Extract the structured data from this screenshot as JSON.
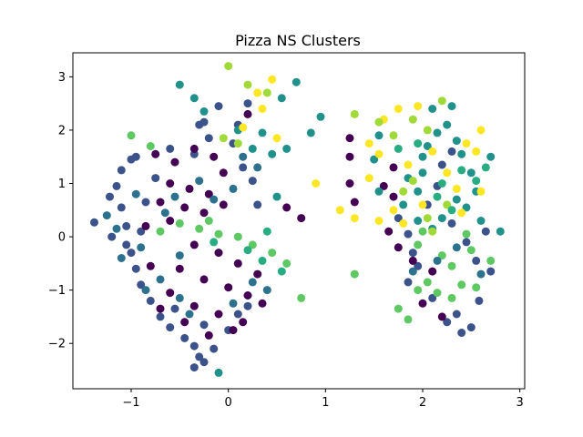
{
  "chart_data": {
    "type": "scatter",
    "title": "Pizza NS Clusters",
    "xlabel": "",
    "ylabel": "",
    "xlim": [
      -1.6,
      3.05
    ],
    "ylim": [
      -2.85,
      3.45
    ],
    "xticks": [
      -1,
      0,
      1,
      2,
      3
    ],
    "xtick_labels": [
      "−1",
      "0",
      "1",
      "2",
      "3"
    ],
    "yticks": [
      -2,
      -1,
      0,
      1,
      2,
      3
    ],
    "ytick_labels": [
      "−2",
      "−1",
      "0",
      "1",
      "2",
      "3"
    ],
    "grid": false,
    "legend": "none",
    "colormap": "viridis",
    "cluster_colors": [
      "#440154",
      "#3b528b",
      "#21918c",
      "#5ec962",
      "#fde725",
      "#a0da39",
      "#2c728e",
      "#27ad81"
    ],
    "series": [
      {
        "color": "#3b528b",
        "values": [
          [
            -1.38,
            0.27
          ],
          [
            -1.22,
            0.75
          ],
          [
            -1.15,
            0.95
          ],
          [
            -1.1,
            1.25
          ],
          [
            -1.0,
            1.45
          ],
          [
            -0.95,
            1.5
          ],
          [
            -1.05,
            0.2
          ],
          [
            -1.2,
            0.0
          ],
          [
            -1.0,
            -0.3
          ],
          [
            -0.95,
            -0.6
          ],
          [
            -0.9,
            -0.9
          ],
          [
            -0.8,
            -1.2
          ],
          [
            -0.7,
            -1.5
          ],
          [
            -0.6,
            -1.7
          ],
          [
            -0.45,
            -1.9
          ],
          [
            -0.35,
            -2.05
          ],
          [
            -0.3,
            -2.25
          ],
          [
            -0.35,
            -2.45
          ],
          [
            -0.25,
            -2.35
          ],
          [
            -0.15,
            -2.1
          ],
          [
            0.0,
            -1.75
          ],
          [
            0.1,
            -1.45
          ],
          [
            0.2,
            -1.3
          ],
          [
            -0.2,
            1.85
          ],
          [
            0.05,
            1.75
          ],
          [
            0.15,
            1.3
          ],
          [
            0.25,
            1.05
          ],
          [
            0.3,
            0.6
          ],
          [
            -0.35,
            1.55
          ],
          [
            -0.6,
            1.65
          ],
          [
            -0.3,
            2.1
          ],
          [
            0.1,
            2.1
          ],
          [
            -0.1,
            2.45
          ],
          [
            0.2,
            2.5
          ],
          [
            -0.25,
            2.15
          ],
          [
            -1.1,
            0.55
          ],
          [
            -0.9,
            0.1
          ],
          [
            -1.05,
            -0.15
          ],
          [
            -0.85,
            0.65
          ],
          [
            -0.75,
            1.1
          ],
          [
            -0.55,
            -1.35
          ],
          [
            -0.25,
            -1.65
          ],
          [
            1.75,
            0.35
          ],
          [
            1.85,
            0.05
          ],
          [
            1.9,
            -0.3
          ],
          [
            1.95,
            -0.55
          ],
          [
            2.05,
            0.6
          ],
          [
            2.15,
            0.95
          ],
          [
            2.3,
            0.25
          ],
          [
            2.45,
            -0.1
          ],
          [
            2.55,
            -0.45
          ],
          [
            2.65,
            0.1
          ],
          [
            2.7,
            -0.65
          ],
          [
            2.35,
            -1.45
          ],
          [
            2.25,
            -1.6
          ],
          [
            2.4,
            -1.8
          ],
          [
            2.5,
            -1.7
          ],
          [
            2.58,
            -1.2
          ],
          [
            2.1,
            -1.15
          ],
          [
            1.85,
            -0.85
          ],
          [
            2.2,
            1.35
          ],
          [
            2.3,
            1.6
          ]
        ]
      },
      {
        "color": "#440154",
        "values": [
          [
            -0.75,
            1.55
          ],
          [
            -0.55,
            1.4
          ],
          [
            -0.35,
            1.65
          ],
          [
            -0.15,
            1.5
          ],
          [
            -0.05,
            1.2
          ],
          [
            -0.6,
            1.0
          ],
          [
            -0.4,
            0.9
          ],
          [
            -0.2,
            0.8
          ],
          [
            -0.7,
            0.65
          ],
          [
            -0.45,
            0.55
          ],
          [
            -0.25,
            0.45
          ],
          [
            -0.05,
            0.6
          ],
          [
            -0.6,
            0.3
          ],
          [
            -0.35,
            -0.15
          ],
          [
            -0.1,
            -0.3
          ],
          [
            0.1,
            -0.5
          ],
          [
            0.3,
            -0.7
          ],
          [
            -0.5,
            -0.6
          ],
          [
            -0.25,
            -0.8
          ],
          [
            0.0,
            -0.95
          ],
          [
            0.2,
            -1.1
          ],
          [
            0.35,
            -1.25
          ],
          [
            -0.6,
            -1.05
          ],
          [
            -0.35,
            -1.3
          ],
          [
            -0.1,
            -1.45
          ],
          [
            0.15,
            -1.6
          ],
          [
            -0.45,
            -1.6
          ],
          [
            -0.2,
            -1.85
          ],
          [
            0.05,
            -1.75
          ],
          [
            -0.7,
            -1.35
          ],
          [
            -0.8,
            -0.55
          ],
          [
            -0.85,
            0.2
          ],
          [
            0.2,
            2.3
          ],
          [
            0.6,
            0.55
          ],
          [
            0.75,
            0.35
          ],
          [
            1.25,
            1.0
          ],
          [
            1.3,
            0.65
          ],
          [
            1.25,
            1.85
          ],
          [
            1.25,
            1.5
          ],
          [
            1.7,
            1.3
          ],
          [
            1.7,
            0.75
          ],
          [
            1.6,
            0.95
          ],
          [
            1.65,
            0.1
          ],
          [
            1.75,
            -0.2
          ],
          [
            1.9,
            -0.45
          ],
          [
            2.1,
            -0.65
          ],
          [
            2.0,
            -1.25
          ],
          [
            2.2,
            -1.5
          ]
        ]
      },
      {
        "color": "#21918c",
        "values": [
          [
            -0.5,
            2.85
          ],
          [
            -0.35,
            2.6
          ],
          [
            0.1,
            2.0
          ],
          [
            0.35,
            1.95
          ],
          [
            0.55,
            2.6
          ],
          [
            0.7,
            2.9
          ],
          [
            0.85,
            1.95
          ],
          [
            0.95,
            2.25
          ],
          [
            0.45,
            1.55
          ],
          [
            0.6,
            1.65
          ],
          [
            0.5,
            0.75
          ],
          [
            1.55,
            1.9
          ],
          [
            1.5,
            1.45
          ],
          [
            1.55,
            0.85
          ],
          [
            1.85,
            1.1
          ],
          [
            1.95,
            0.85
          ],
          [
            2.0,
            1.5
          ],
          [
            2.05,
            1.7
          ],
          [
            2.15,
            1.95
          ],
          [
            2.25,
            2.1
          ],
          [
            2.1,
            2.4
          ],
          [
            2.3,
            2.45
          ],
          [
            2.35,
            1.8
          ],
          [
            2.4,
            1.55
          ],
          [
            2.5,
            1.2
          ],
          [
            2.55,
            0.85
          ],
          [
            2.45,
            0.55
          ],
          [
            2.2,
            0.35
          ],
          [
            2.1,
            0.15
          ],
          [
            2.35,
            0.7
          ],
          [
            2.6,
            0.3
          ],
          [
            2.7,
            1.5
          ],
          [
            2.8,
            0.1
          ],
          [
            1.8,
            0.6
          ],
          [
            1.95,
            0.3
          ],
          [
            2.0,
            1.2
          ],
          [
            -0.1,
            -2.55
          ],
          [
            -0.25,
            2.35
          ],
          [
            0.25,
            1.65
          ]
        ]
      },
      {
        "color": "#5ec962",
        "values": [
          [
            -0.7,
            0.1
          ],
          [
            -0.5,
            0.25
          ],
          [
            -0.3,
            0.15
          ],
          [
            -0.1,
            0.05
          ],
          [
            0.1,
            0.0
          ],
          [
            0.25,
            -0.15
          ],
          [
            0.45,
            -0.3
          ],
          [
            0.6,
            -0.5
          ],
          [
            0.75,
            -1.15
          ],
          [
            -0.2,
            0.3
          ],
          [
            -1.0,
            1.9
          ],
          [
            -0.8,
            1.7
          ],
          [
            1.3,
            -0.7
          ],
          [
            1.75,
            -1.35
          ],
          [
            1.85,
            -1.55
          ],
          [
            1.95,
            -1.0
          ],
          [
            2.05,
            -0.85
          ],
          [
            2.2,
            -0.35
          ],
          [
            2.3,
            -0.55
          ],
          [
            2.4,
            -0.9
          ],
          [
            2.5,
            -0.25
          ],
          [
            2.15,
            -1.05
          ],
          [
            2.3,
            -1.15
          ],
          [
            1.95,
            -0.15
          ],
          [
            2.0,
            0.1
          ],
          [
            2.55,
            -0.95
          ],
          [
            2.7,
            -0.45
          ],
          [
            2.45,
            0.05
          ]
        ]
      },
      {
        "color": "#fde725",
        "values": [
          [
            0.3,
            2.7
          ],
          [
            0.45,
            2.95
          ],
          [
            0.35,
            2.4
          ],
          [
            0.15,
            2.05
          ],
          [
            0.5,
            1.85
          ],
          [
            0.9,
            1.0
          ],
          [
            1.15,
            0.5
          ],
          [
            1.3,
            0.35
          ],
          [
            1.45,
            1.1
          ],
          [
            1.55,
            1.55
          ],
          [
            1.6,
            2.2
          ],
          [
            1.75,
            2.4
          ],
          [
            1.85,
            1.35
          ],
          [
            1.95,
            2.45
          ],
          [
            2.1,
            1.6
          ],
          [
            2.25,
            1.2
          ],
          [
            2.35,
            0.9
          ],
          [
            2.4,
            0.45
          ],
          [
            2.45,
            1.75
          ],
          [
            2.55,
            1.6
          ],
          [
            2.6,
            2.0
          ],
          [
            1.7,
            0.5
          ],
          [
            1.8,
            0.25
          ],
          [
            2.0,
            0.6
          ],
          [
            1.55,
            0.3
          ],
          [
            1.45,
            1.75
          ],
          [
            2.6,
            0.85
          ]
        ]
      },
      {
        "color": "#a0da39",
        "values": [
          [
            0.0,
            3.2
          ],
          [
            0.2,
            2.85
          ],
          [
            0.4,
            2.7
          ],
          [
            1.3,
            2.3
          ],
          [
            1.55,
            2.15
          ],
          [
            1.7,
            1.9
          ],
          [
            1.9,
            2.2
          ],
          [
            2.05,
            2.0
          ],
          [
            2.2,
            2.55
          ],
          [
            2.25,
            0.6
          ],
          [
            2.05,
            0.35
          ],
          [
            1.8,
            0.85
          ],
          [
            2.1,
            0.1
          ],
          [
            -0.05,
            1.85
          ],
          [
            0.1,
            1.75
          ],
          [
            1.9,
            1.05
          ]
        ]
      },
      {
        "color": "#2c728e",
        "values": [
          [
            -1.25,
            0.4
          ],
          [
            -1.15,
            0.15
          ],
          [
            -1.1,
            -0.4
          ],
          [
            -0.95,
            0.8
          ],
          [
            -0.9,
            -0.2
          ],
          [
            -0.65,
            0.45
          ],
          [
            -0.5,
            -0.35
          ],
          [
            -0.55,
            0.75
          ],
          [
            -0.3,
            1.05
          ],
          [
            -0.15,
            0.7
          ],
          [
            0.05,
            0.9
          ],
          [
            0.05,
            -1.25
          ],
          [
            0.25,
            -0.85
          ],
          [
            0.4,
            -1.0
          ],
          [
            -0.7,
            -0.8
          ],
          [
            -0.5,
            -1.15
          ],
          [
            -0.85,
            -1.0
          ],
          [
            -0.4,
            -1.45
          ],
          [
            0.3,
            1.3
          ],
          [
            0.15,
            1.5
          ],
          [
            1.9,
            -0.65
          ],
          [
            2.15,
            -0.45
          ],
          [
            2.35,
            -0.2
          ],
          [
            2.6,
            -0.7
          ]
        ]
      },
      {
        "color": "#27ad81",
        "values": [
          [
            0.4,
            0.1
          ],
          [
            0.2,
            -0.25
          ],
          [
            -0.15,
            -0.1
          ],
          [
            0.55,
            -0.65
          ],
          [
            0.35,
            -0.45
          ],
          [
            1.95,
            1.75
          ],
          [
            2.2,
            1.0
          ],
          [
            2.4,
            1.25
          ],
          [
            2.55,
            1.05
          ],
          [
            1.75,
            1.65
          ],
          [
            2.15,
            0.75
          ],
          [
            2.3,
            0.5
          ],
          [
            2.65,
            1.3
          ]
        ]
      }
    ]
  }
}
